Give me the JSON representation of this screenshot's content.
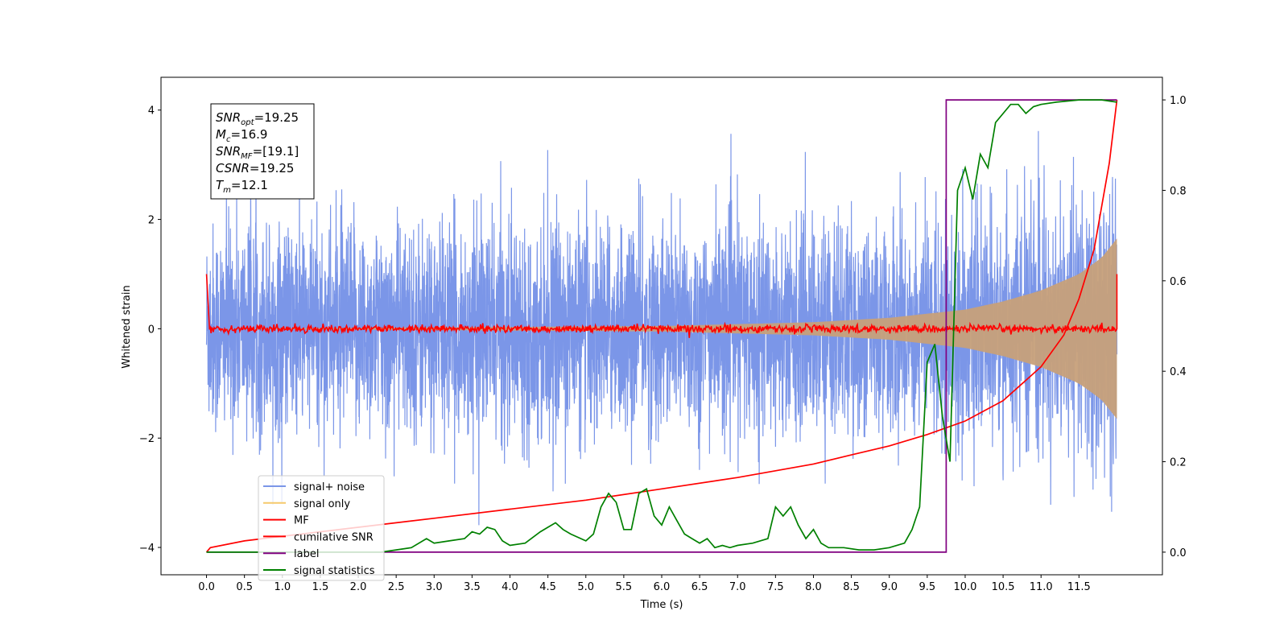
{
  "chart_data": {
    "type": "line",
    "xlabel": "Time (s)",
    "ylabel": "Whitened strain",
    "xlim": [
      -0.6,
      12.6
    ],
    "ylim": [
      -4.5,
      4.6
    ],
    "ylim_right": [
      -0.05,
      1.05
    ],
    "x_ticks": [
      "0.0",
      "0.5",
      "1.0",
      "1.5",
      "2.0",
      "2.5",
      "3.0",
      "3.5",
      "4.0",
      "4.5",
      "5.0",
      "5.5",
      "6.0",
      "6.5",
      "7.0",
      "7.5",
      "8.0",
      "8.5",
      "9.0",
      "9.5",
      "10.0",
      "10.5",
      "11.0",
      "11.5"
    ],
    "y_ticks": [
      "−4",
      "−2",
      "0",
      "2",
      "4"
    ],
    "y2_ticks": [
      "0.0",
      "0.2",
      "0.4",
      "0.6",
      "0.8",
      "1.0"
    ],
    "annotation": {
      "lines": [
        {
          "main": "SNR",
          "sub": "opt",
          "value": "=19.25"
        },
        {
          "main": "M",
          "sub": "c",
          "value": "=16.9"
        },
        {
          "main": "SNR",
          "sub": "MF",
          "value": "=[19.1]"
        },
        {
          "main": "CSNR",
          "sub": "",
          "value": "=19.25"
        },
        {
          "main": "T",
          "sub": "m",
          "value": "=12.1"
        }
      ]
    },
    "legend": {
      "position": "bottom-left",
      "entries": [
        {
          "label": "signal+ noise",
          "color": "#7b96e8"
        },
        {
          "label": "signal only",
          "color": "#f5c96b"
        },
        {
          "label": "MF",
          "color": "#ff0000"
        },
        {
          "label": "cumilative SNR",
          "color": "#ff0000"
        },
        {
          "label": "label",
          "color": "#800080"
        },
        {
          "label": "signal statistics",
          "color": "#008000"
        }
      ]
    },
    "series": [
      {
        "name": "signal+ noise",
        "axis": "left",
        "color": "#7b96e8",
        "description": "whitened noise plus chirp, amplitude roughly ±2.5 with spikes to ±4",
        "t_start": 0.0,
        "t_end": 12.0,
        "amplitude_std": 0.95
      },
      {
        "name": "signal only",
        "axis": "left",
        "color": "#c7a07a",
        "envelope_x": [
          0.0,
          6.0,
          8.0,
          9.0,
          10.0,
          10.5,
          11.0,
          11.5,
          11.8,
          12.0
        ],
        "envelope_y": [
          0.0,
          0.05,
          0.12,
          0.2,
          0.35,
          0.5,
          0.7,
          1.0,
          1.3,
          1.65
        ]
      },
      {
        "name": "MF",
        "axis": "left",
        "color": "#ff0000",
        "points": [
          [
            0.0,
            1.0
          ],
          [
            0.03,
            0.05
          ],
          [
            12.0,
            0.0
          ],
          [
            12.0,
            1.0
          ]
        ],
        "noise_std": 0.035
      },
      {
        "name": "cumilative SNR",
        "axis": "right",
        "color": "#ff0000",
        "x": [
          0.0,
          0.05,
          0.5,
          1.0,
          2.0,
          3.0,
          4.0,
          5.0,
          6.0,
          7.0,
          7.5,
          8.0,
          8.5,
          9.0,
          9.5,
          10.0,
          10.5,
          11.0,
          11.3,
          11.5,
          11.7,
          11.9,
          12.0
        ],
        "y": [
          0.0,
          0.01,
          0.025,
          0.035,
          0.055,
          0.075,
          0.095,
          0.115,
          0.14,
          0.165,
          0.18,
          0.195,
          0.215,
          0.235,
          0.26,
          0.29,
          0.335,
          0.41,
          0.48,
          0.56,
          0.67,
          0.86,
          1.0
        ]
      },
      {
        "name": "label",
        "axis": "right",
        "color": "#800080",
        "x": [
          0.0,
          9.75,
          9.75,
          12.0
        ],
        "y": [
          0.0,
          0.0,
          1.0,
          1.0
        ]
      },
      {
        "name": "signal statistics",
        "axis": "right",
        "color": "#008000",
        "x": [
          0.0,
          0.5,
          1.0,
          1.5,
          2.0,
          2.3,
          2.5,
          2.7,
          2.9,
          3.0,
          3.2,
          3.4,
          3.5,
          3.6,
          3.7,
          3.8,
          3.9,
          4.0,
          4.2,
          4.4,
          4.5,
          4.6,
          4.7,
          4.8,
          5.0,
          5.1,
          5.2,
          5.3,
          5.4,
          5.5,
          5.6,
          5.7,
          5.8,
          5.9,
          6.0,
          6.1,
          6.2,
          6.3,
          6.4,
          6.5,
          6.6,
          6.7,
          6.8,
          6.9,
          7.0,
          7.2,
          7.4,
          7.5,
          7.6,
          7.7,
          7.8,
          7.9,
          8.0,
          8.1,
          8.2,
          8.4,
          8.6,
          8.8,
          9.0,
          9.2,
          9.3,
          9.4,
          9.45,
          9.5,
          9.6,
          9.7,
          9.8,
          9.9,
          10.0,
          10.1,
          10.2,
          10.3,
          10.4,
          10.6,
          10.7,
          10.8,
          10.9,
          11.0,
          11.2,
          11.5,
          11.8,
          12.0
        ],
        "y": [
          0.0,
          0.0,
          0.0,
          0.0,
          0.0,
          0.0,
          0.005,
          0.01,
          0.03,
          0.02,
          0.025,
          0.03,
          0.045,
          0.04,
          0.055,
          0.05,
          0.025,
          0.015,
          0.02,
          0.045,
          0.055,
          0.065,
          0.05,
          0.04,
          0.025,
          0.04,
          0.1,
          0.13,
          0.11,
          0.05,
          0.05,
          0.13,
          0.14,
          0.08,
          0.06,
          0.1,
          0.07,
          0.04,
          0.03,
          0.02,
          0.03,
          0.01,
          0.015,
          0.01,
          0.015,
          0.02,
          0.03,
          0.1,
          0.08,
          0.1,
          0.06,
          0.03,
          0.05,
          0.02,
          0.01,
          0.01,
          0.005,
          0.005,
          0.01,
          0.02,
          0.05,
          0.1,
          0.26,
          0.42,
          0.46,
          0.3,
          0.2,
          0.8,
          0.85,
          0.78,
          0.88,
          0.85,
          0.95,
          0.99,
          0.99,
          0.97,
          0.985,
          0.99,
          0.995,
          1.0,
          1.0,
          0.995
        ]
      }
    ]
  }
}
